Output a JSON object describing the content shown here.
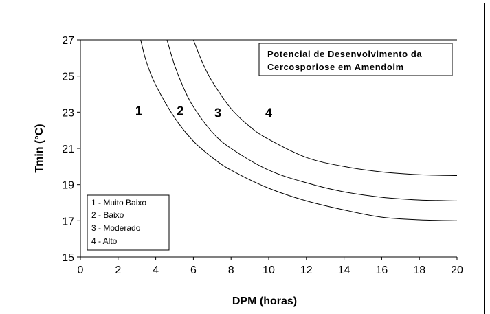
{
  "chart_data": {
    "type": "line",
    "title_lines": [
      "Potencial de Desenvolvimento da",
      "Cercosporiose em Amendoim"
    ],
    "xlabel": "DPM (horas)",
    "ylabel": "Tmin (°C)",
    "xlim": [
      0,
      20
    ],
    "ylim": [
      15,
      27
    ],
    "xticks": [
      0,
      2,
      4,
      6,
      8,
      10,
      12,
      14,
      16,
      18,
      20
    ],
    "yticks": [
      15,
      17,
      19,
      21,
      23,
      25,
      27
    ],
    "grid": false,
    "series": [
      {
        "x": [
          3.2,
          3.5,
          4,
          5,
          6,
          7,
          8,
          10,
          12,
          14,
          16,
          18,
          20
        ],
        "y": [
          27,
          25.8,
          24.5,
          22.7,
          21.4,
          20.5,
          19.8,
          18.8,
          18.1,
          17.6,
          17.2,
          17.05,
          17.0
        ]
      },
      {
        "x": [
          4.6,
          5,
          5.5,
          6,
          7,
          8,
          10,
          12,
          14,
          16,
          18,
          20
        ],
        "y": [
          27,
          25.6,
          24.3,
          23.3,
          21.9,
          21.0,
          19.8,
          19.1,
          18.6,
          18.3,
          18.15,
          18.1
        ]
      },
      {
        "x": [
          6.0,
          6.5,
          7,
          8,
          9,
          10,
          12,
          14,
          16,
          18,
          20
        ],
        "y": [
          27,
          25.7,
          24.7,
          23.2,
          22.2,
          21.5,
          20.5,
          20.0,
          19.7,
          19.55,
          19.5
        ]
      }
    ],
    "region_labels": [
      {
        "text": "1",
        "x": 3.1,
        "y": 23.1
      },
      {
        "text": "2",
        "x": 5.3,
        "y": 23.1
      },
      {
        "text": "3",
        "x": 7.3,
        "y": 23.0
      },
      {
        "text": "4",
        "x": 10.0,
        "y": 23.0
      }
    ],
    "legend": {
      "placement": "bottom-left",
      "entries": [
        "1 - Muito Baixo",
        "2 - Baixo",
        "3 - Moderado",
        "4 - Alto"
      ]
    }
  }
}
